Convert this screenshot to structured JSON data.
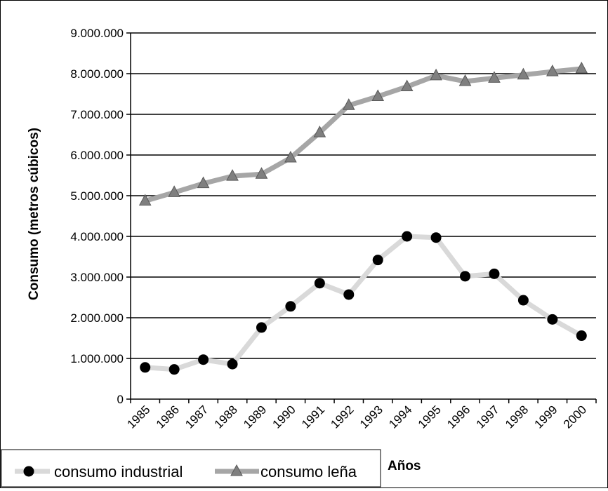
{
  "chart_data": {
    "type": "line",
    "title": "",
    "xlabel": "Años",
    "ylabel": "Consumo (metros cúbicos)",
    "categories": [
      "1985",
      "1986",
      "1987",
      "1988",
      "1989",
      "1990",
      "1991",
      "1992",
      "1993",
      "1994",
      "1995",
      "1996",
      "1997",
      "1998",
      "1999",
      "2000"
    ],
    "ylim": [
      0,
      9000000
    ],
    "y_ticks": [
      0,
      1000000,
      2000000,
      3000000,
      4000000,
      5000000,
      6000000,
      7000000,
      8000000,
      9000000
    ],
    "y_tick_labels": [
      "0",
      "1.000.000",
      "2.000.000",
      "3.000.000",
      "4.000.000",
      "5.000.000",
      "6.000.000",
      "7.000.000",
      "8.000.000",
      "9.000.000"
    ],
    "grid": true,
    "legend_position": "bottom-left",
    "series": [
      {
        "name": "consumo industrial",
        "marker": "circle",
        "line_color": "#d9d9d9",
        "marker_color": "#000000",
        "values": [
          780000,
          730000,
          970000,
          860000,
          1760000,
          2280000,
          2850000,
          2570000,
          3420000,
          4000000,
          3970000,
          3020000,
          3080000,
          2430000,
          1960000,
          1560000
        ]
      },
      {
        "name": "consumo leña",
        "marker": "triangle",
        "line_color": "#a6a6a6",
        "marker_color": "#7f7f7f",
        "values": [
          4870000,
          5080000,
          5300000,
          5480000,
          5530000,
          5930000,
          6550000,
          7220000,
          7440000,
          7680000,
          7950000,
          7810000,
          7890000,
          7970000,
          8050000,
          8120000
        ]
      }
    ]
  }
}
